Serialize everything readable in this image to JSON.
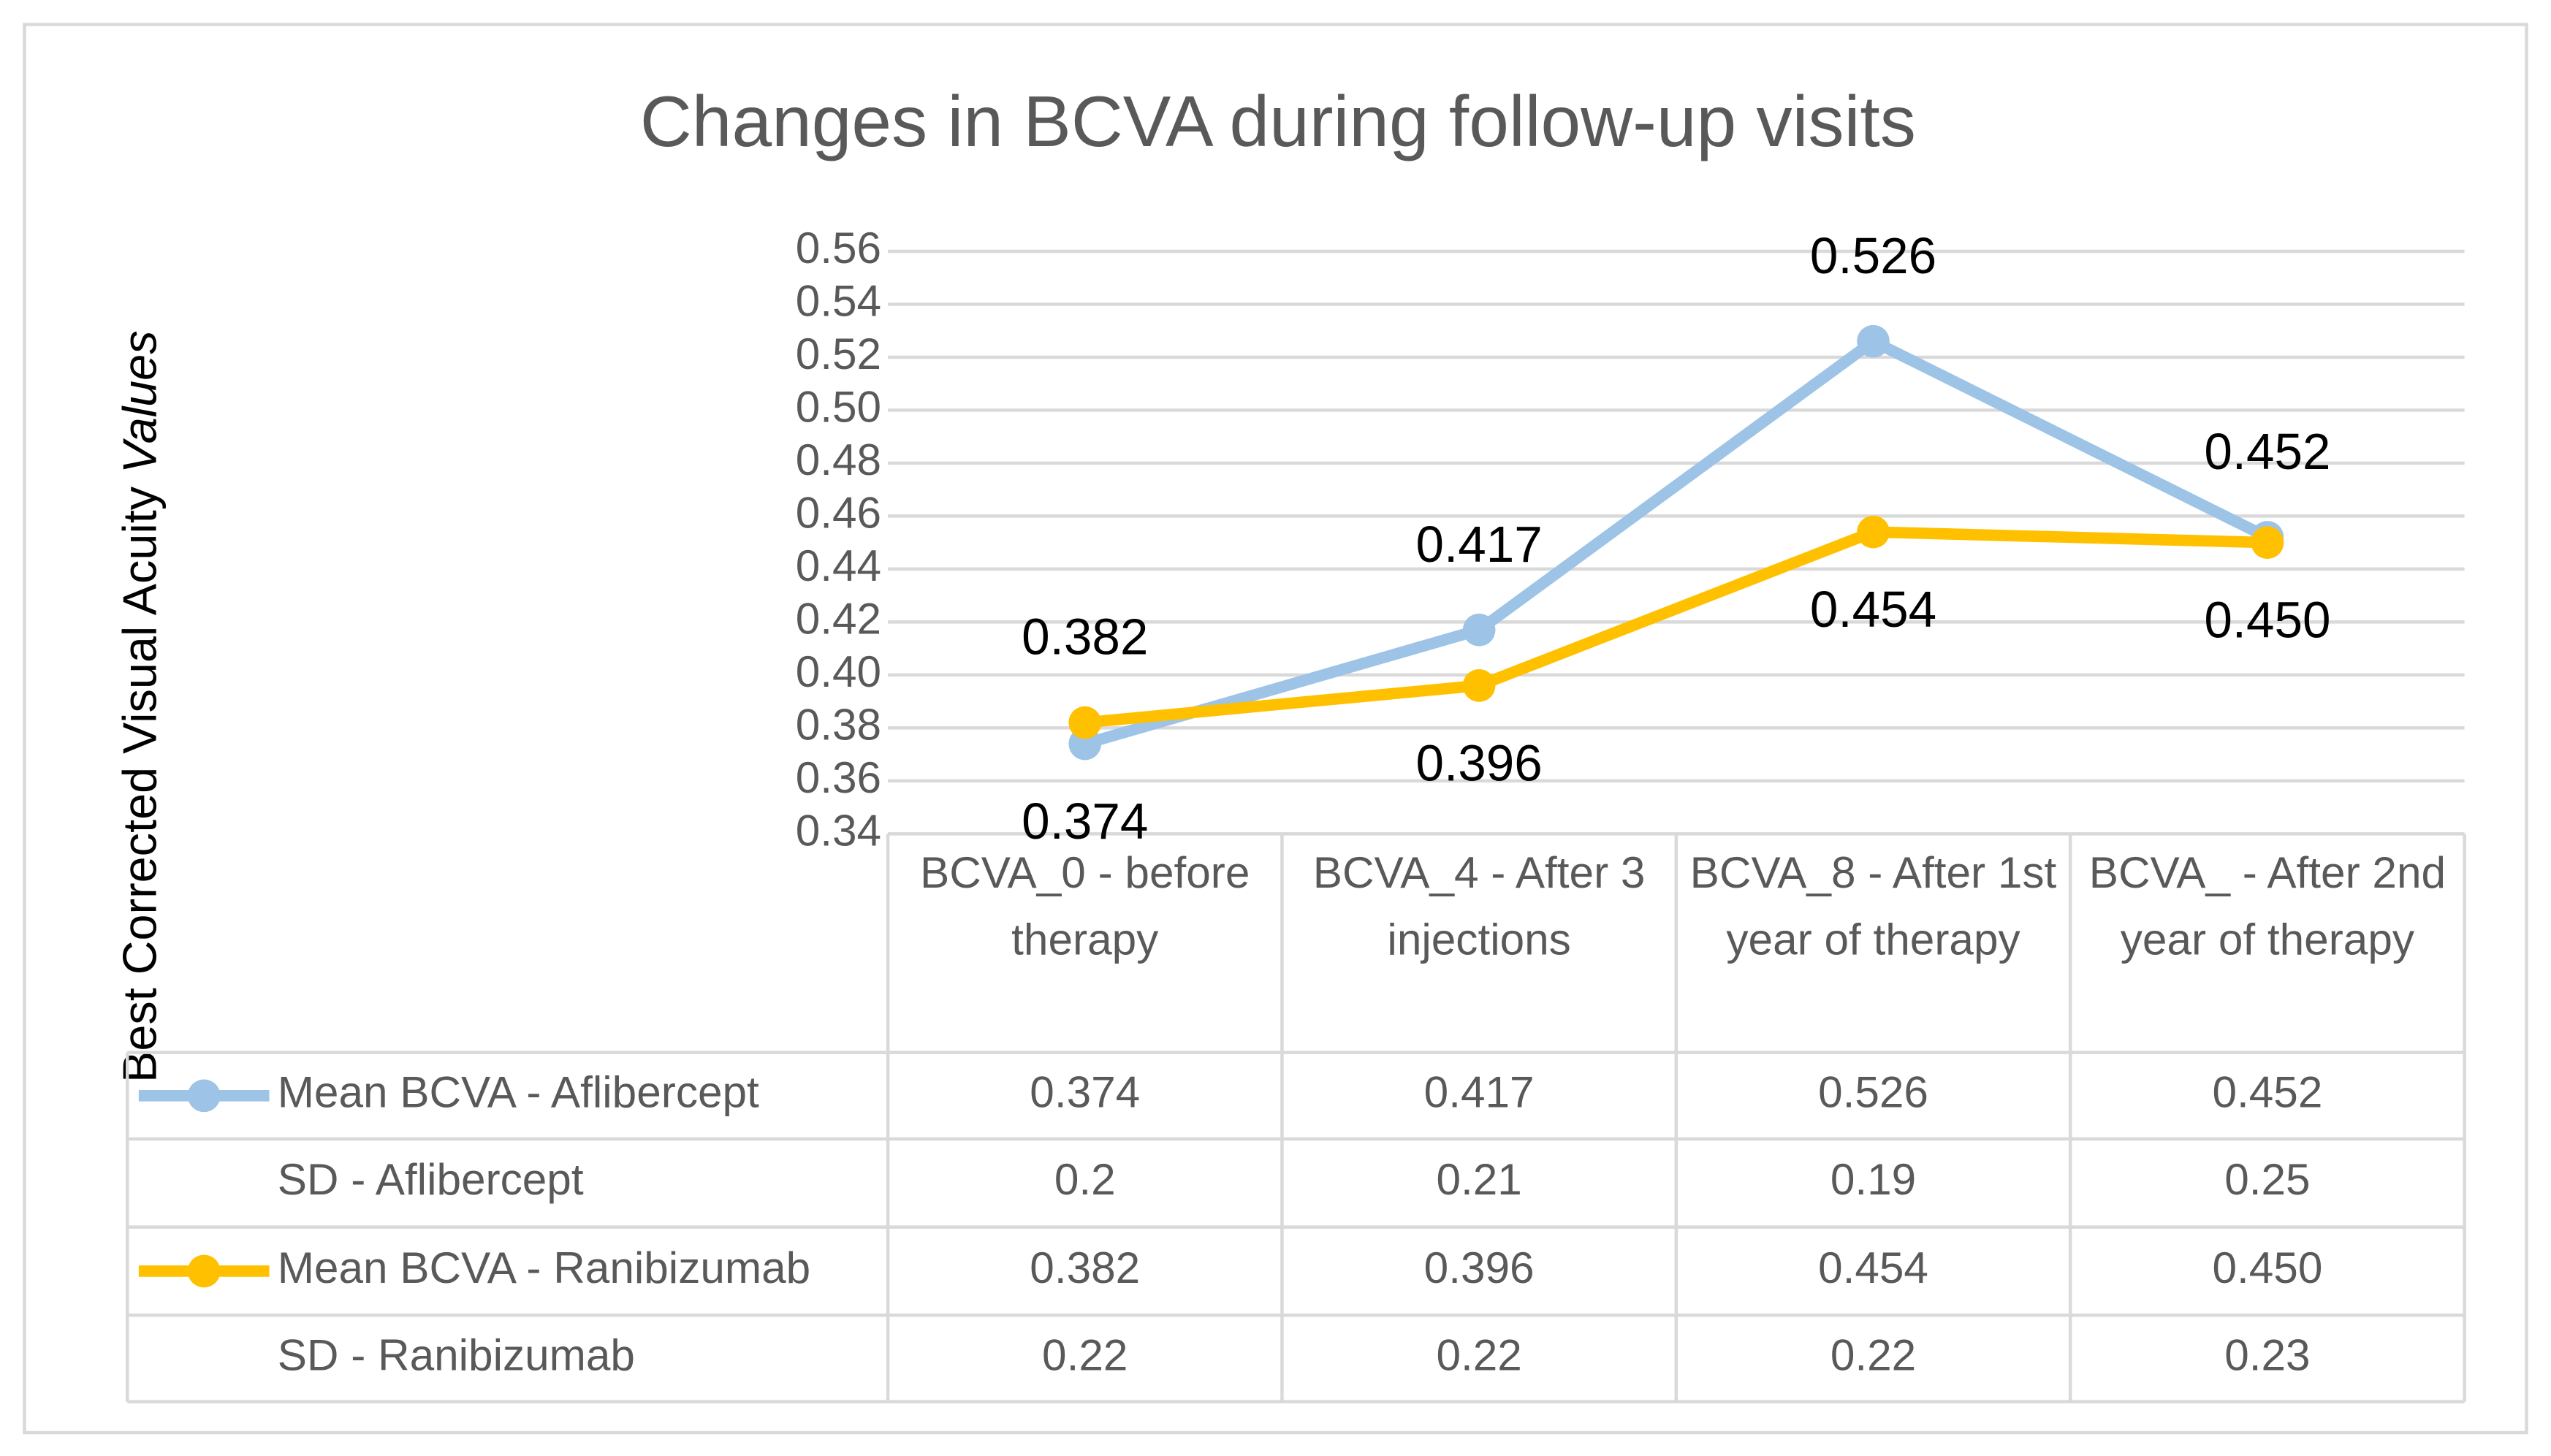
{
  "chart_data": {
    "type": "line",
    "title": "Changes in BCVA during follow-up visits",
    "ylabel": [
      "Best Corrected Visual Acuity",
      "Values"
    ],
    "categories": [
      "BCVA_0 - before therapy",
      "BCVA_4 - After 3 injections",
      "BCVA_8 - After 1st year of therapy",
      "BCVA_ - After 2nd year of therapy"
    ],
    "series": [
      {
        "name": "Mean BCVA - Aflibercept",
        "color": "#9dc3e6",
        "values": [
          0.374,
          0.417,
          0.526,
          0.452
        ]
      },
      {
        "name": "Mean BCVA - Ranibizumab",
        "color": "#ffc000",
        "values": [
          0.382,
          0.396,
          0.454,
          0.45
        ],
        "value_labels": [
          "0.382",
          "0.396",
          "0.454",
          "0.450"
        ]
      }
    ],
    "table_rows": [
      {
        "name": "SD - Aflibercept",
        "values": [
          0.2,
          0.21,
          0.19,
          0.25
        ]
      },
      {
        "name": "SD - Ranibizumab",
        "values": [
          0.22,
          0.22,
          0.22,
          0.23
        ]
      }
    ],
    "ylim": [
      0.34,
      0.56
    ],
    "yticks": [
      0.34,
      0.36,
      0.38,
      {
        "value": 0.4,
        "label": "0.40"
      },
      0.42,
      0.44,
      0.46,
      0.48,
      {
        "value": 0.5,
        "label": "0.50"
      },
      0.52,
      0.54,
      0.56
    ],
    "grid": true
  }
}
